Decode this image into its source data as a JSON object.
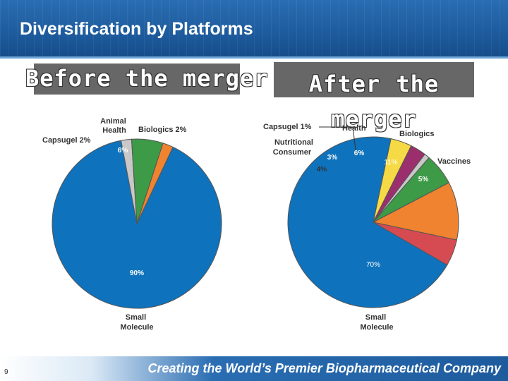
{
  "slide": {
    "title": "Diversification by Platforms",
    "footer": "Creating the World’s Premier Biopharmaceutical Company",
    "page_number": "9"
  },
  "chart_data": [
    {
      "type": "pie",
      "title": "Before the merger",
      "slices": [
        {
          "label": "Small Molecule",
          "value": 90,
          "value_label": "90%",
          "color": "#0e72bc"
        },
        {
          "label": "Capsugel 2%",
          "value": 2,
          "value_label": "",
          "color": "#c8c8c8"
        },
        {
          "label": "Animal Health",
          "value": 6,
          "value_label": "6%",
          "color": "#3d9a47"
        },
        {
          "label": "Biologics 2%",
          "value": 2,
          "value_label": "",
          "color": "#f08330"
        }
      ]
    },
    {
      "type": "pie",
      "title": "After the merger",
      "slices": [
        {
          "label": "Small Molecule",
          "value": 70,
          "value_label": "70%",
          "color": "#0e72bc"
        },
        {
          "label": "Nutritional Consumer",
          "value": 4,
          "value_label": "4%",
          "color": "#f5da45"
        },
        {
          "label": "",
          "value": 3,
          "value_label": "3%",
          "color": "#9b2f6e"
        },
        {
          "label": "Capsugel 1%",
          "value": 1,
          "value_label": "",
          "color": "#c8c8c8"
        },
        {
          "label": "Health",
          "value": 6,
          "value_label": "6%",
          "color": "#3d9a47"
        },
        {
          "label": "Biologics",
          "value": 11,
          "value_label": "11%",
          "color": "#f08330"
        },
        {
          "label": "Vaccines",
          "value": 5,
          "value_label": "5%",
          "color": "#d64b52"
        }
      ]
    }
  ]
}
